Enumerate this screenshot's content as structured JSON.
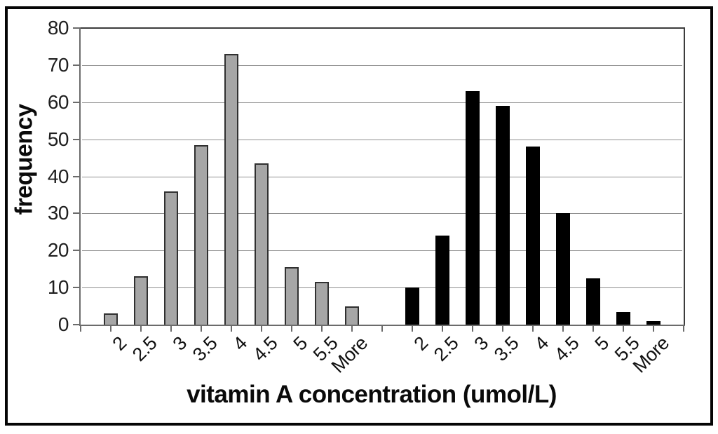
{
  "figure": {
    "background": "#ffffff",
    "border_color": "#050505"
  },
  "chart_data": {
    "type": "bar",
    "xlabel": "vitamin A concentration (umol/L)",
    "ylabel": "frequency",
    "ylim": [
      0,
      80
    ],
    "yticks": [
      0,
      10,
      20,
      30,
      40,
      50,
      60,
      70,
      80
    ],
    "categories": [
      "2",
      "2.5",
      "3",
      "3.5",
      "4",
      "4.5",
      "5",
      "5.5",
      "More"
    ],
    "series": [
      {
        "name": "gray-group",
        "fill": "#a6a6a6",
        "border": "#303030",
        "values": [
          3,
          13,
          36,
          48.5,
          73,
          43.5,
          15.5,
          11.5,
          5
        ]
      },
      {
        "name": "black-group",
        "fill": "#000000",
        "border": "#000000",
        "values": [
          10,
          24,
          63,
          59,
          48,
          30,
          12.5,
          3.5,
          1
        ]
      }
    ],
    "layout": {
      "grid": true,
      "legend": false,
      "gridline_color": "#8f8f8f",
      "axis_color": "#6b6b6b",
      "x_labels_rotated_degrees": -45,
      "empty_slot_between_groups": true,
      "tick_marks_at_every_slot": true
    }
  }
}
